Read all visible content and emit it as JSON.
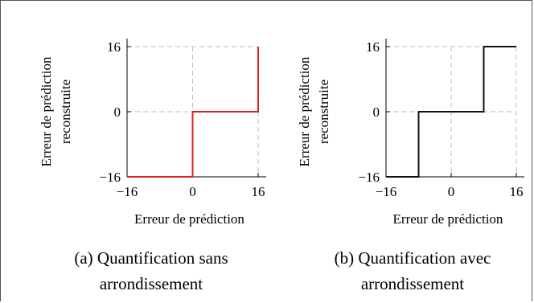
{
  "colors": {
    "left_series": "#e02020",
    "right_series": "#111111",
    "grid": "#bdbdbd"
  },
  "chart_data": [
    {
      "type": "line",
      "subtitle": "(a) Quantification sans",
      "subtitle_line2": "arrondissement",
      "xlabel": "Erreur de prédiction",
      "ylabel": "Erreur de prédiction",
      "ylabel_line2": "reconstruite",
      "xlim": [
        -16,
        16
      ],
      "ylim": [
        -16,
        16
      ],
      "xticks": [
        -16,
        0,
        16
      ],
      "yticks": [
        -16,
        0,
        16
      ],
      "xtick_labels": [
        "−16",
        "0",
        "16"
      ],
      "ytick_labels": [
        "−16",
        "0",
        "16"
      ],
      "grid": true,
      "series": [
        {
          "x": [
            -16,
            0,
            0,
            16,
            16
          ],
          "y": [
            -16,
            -16,
            0,
            0,
            16
          ]
        }
      ]
    },
    {
      "type": "line",
      "subtitle": "(b) Quantification avec",
      "subtitle_line2": "arrondissement",
      "xlabel": "Erreur de prédiction",
      "ylabel": "Erreur de prédiction",
      "ylabel_line2": "reconstruite",
      "xlim": [
        -16,
        16
      ],
      "ylim": [
        -16,
        16
      ],
      "xticks": [
        -16,
        0,
        16
      ],
      "yticks": [
        -16,
        0,
        16
      ],
      "xtick_labels": [
        "−16",
        "0",
        "16"
      ],
      "ytick_labels": [
        "−16",
        "0",
        "16"
      ],
      "grid": true,
      "series": [
        {
          "x": [
            -16,
            -8,
            -8,
            8,
            8,
            16
          ],
          "y": [
            -16,
            -16,
            0,
            0,
            16,
            16
          ]
        }
      ]
    }
  ]
}
